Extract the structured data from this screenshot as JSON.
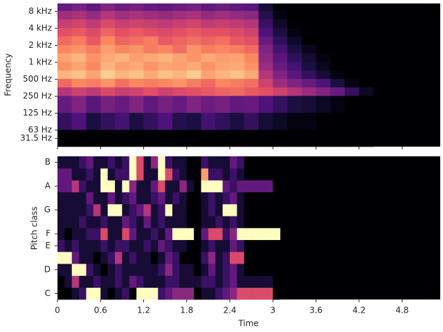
{
  "chart_data": [
    {
      "type": "heatmap",
      "ylabel": "Frequency",
      "colormap": "magma",
      "clim": [
        -80,
        0
      ],
      "yscale": "symlog",
      "linthresh": 64,
      "linscale": 1,
      "xlim": [
        0,
        5.33
      ],
      "ylim": [
        0,
        11025
      ],
      "xticks": [
        0,
        0.6,
        1.2,
        1.8,
        2.4,
        3,
        3.6,
        4.2,
        4.8
      ],
      "yticks": [
        {
          "value": 31.25,
          "label": "31.5 Hz"
        },
        {
          "value": 62.5,
          "label": "63 Hz"
        },
        {
          "value": 125,
          "label": "125 Hz"
        },
        {
          "value": 250,
          "label": "250 Hz"
        },
        {
          "value": 500,
          "label": "500 Hz"
        },
        {
          "value": 1000,
          "label": "1 kHz"
        },
        {
          "value": 2000,
          "label": "2 kHz"
        },
        {
          "value": 4000,
          "label": "4 kHz"
        },
        {
          "value": 8000,
          "label": "8 kHz"
        }
      ],
      "time_bins": [
        0,
        0.2,
        0.4,
        0.6,
        0.8,
        1,
        1.2,
        1.4,
        1.6,
        1.8,
        2,
        2.2,
        2.4,
        2.6,
        2.8,
        3,
        3.2,
        3.4,
        3.6,
        3.8,
        4,
        4.2,
        4.4
      ],
      "freq_bins": [
        0,
        64,
        128,
        256,
        362,
        512,
        724,
        1024,
        1448,
        2048,
        2896,
        4096,
        5793,
        8192,
        11025
      ],
      "values": [
        [
          -80,
          -80,
          -80,
          -80,
          -80,
          -80,
          -80,
          -80,
          -80,
          -80,
          -80,
          -80,
          -80,
          -80,
          -80,
          -80,
          -80,
          -80,
          -80,
          -80,
          -80,
          -80
        ],
        [
          -65,
          -60,
          -70,
          -65,
          -62,
          -70,
          -65,
          -60,
          -68,
          -70,
          -62,
          -66,
          -70,
          -65,
          -72,
          -75,
          -78,
          -78,
          -80,
          -80,
          -80,
          -80
        ],
        [
          -55,
          -50,
          -58,
          -52,
          -55,
          -50,
          -56,
          -52,
          -55,
          -50,
          -54,
          -52,
          -56,
          -55,
          -60,
          -65,
          -70,
          -72,
          -75,
          -78,
          -80,
          -80
        ],
        [
          -40,
          -35,
          -38,
          -32,
          -36,
          -34,
          -30,
          -35,
          -32,
          -30,
          -28,
          -26,
          -25,
          -28,
          -30,
          -35,
          -40,
          -45,
          -50,
          -55,
          -65,
          -75
        ],
        [
          -25,
          -20,
          -22,
          -18,
          -24,
          -20,
          -22,
          -20,
          -18,
          -22,
          -25,
          -20,
          -22,
          -24,
          -35,
          -45,
          -50,
          -55,
          -60,
          -70,
          -78,
          -80
        ],
        [
          -12,
          -10,
          -15,
          -8,
          -12,
          -10,
          -14,
          -10,
          -12,
          -8,
          -15,
          -12,
          -10,
          -14,
          -40,
          -50,
          -58,
          -65,
          -72,
          -78,
          -80,
          -80
        ],
        [
          -18,
          -15,
          -20,
          -12,
          -16,
          -14,
          -18,
          -15,
          -16,
          -14,
          -18,
          -15,
          -14,
          -18,
          -45,
          -55,
          -62,
          -70,
          -76,
          -80,
          -80,
          -80
        ],
        [
          -15,
          -12,
          -18,
          -14,
          -12,
          -16,
          -14,
          -12,
          -15,
          -18,
          -14,
          -16,
          -15,
          -20,
          -48,
          -58,
          -66,
          -72,
          -78,
          -80,
          -80,
          -80
        ],
        [
          -20,
          -18,
          -22,
          -16,
          -20,
          -18,
          -22,
          -20,
          -24,
          -18,
          -22,
          -20,
          -22,
          -25,
          -50,
          -62,
          -70,
          -76,
          -80,
          -80,
          -80,
          -80
        ],
        [
          -25,
          -22,
          -28,
          -20,
          -26,
          -24,
          -22,
          -28,
          -26,
          -24,
          -26,
          -24,
          -28,
          -30,
          -55,
          -66,
          -74,
          -80,
          -80,
          -80,
          -80,
          -80
        ],
        [
          -30,
          -28,
          -32,
          -26,
          -30,
          -28,
          -30,
          -32,
          -30,
          -28,
          -30,
          -30,
          -32,
          -35,
          -60,
          -70,
          -78,
          -80,
          -80,
          -80,
          -80,
          -80
        ],
        [
          -36,
          -34,
          -38,
          -32,
          -36,
          -35,
          -36,
          -38,
          -36,
          -34,
          -38,
          -36,
          -38,
          -40,
          -64,
          -74,
          -80,
          -80,
          -80,
          -80,
          -80,
          -80
        ],
        [
          -44,
          -42,
          -46,
          -40,
          -44,
          -42,
          -44,
          -46,
          -44,
          -42,
          -46,
          -44,
          -46,
          -48,
          -68,
          -78,
          -80,
          -80,
          -80,
          -80,
          -80,
          -80
        ],
        [
          -55,
          -52,
          -56,
          -50,
          -54,
          -52,
          -55,
          -56,
          -54,
          -52,
          -56,
          -54,
          -56,
          -58,
          -72,
          -80,
          -80,
          -80,
          -80,
          -80,
          -80,
          -80
        ]
      ]
    },
    {
      "type": "heatmap",
      "xlabel": "Time",
      "ylabel": "Pitch class",
      "colormap": "magma",
      "clim": [
        0,
        1
      ],
      "xlim": [
        0,
        5.33
      ],
      "xticks": [
        0,
        0.6,
        1.2,
        1.8,
        2.4,
        3,
        3.6,
        4.2,
        4.8
      ],
      "categories": [
        "C",
        null,
        "D",
        null,
        "E",
        "F",
        null,
        "G",
        null,
        "A",
        null,
        "B"
      ],
      "time_bins": [
        0,
        0.1,
        0.2,
        0.3,
        0.4,
        0.5,
        0.6,
        0.7,
        0.8,
        0.9,
        1,
        1.1,
        1.2,
        1.3,
        1.4,
        1.5,
        1.6,
        1.7,
        1.8,
        1.9,
        2,
        2.1,
        2.2,
        2.3,
        2.4,
        2.5,
        2.6,
        2.7,
        2.8,
        2.9,
        3,
        3.1
      ],
      "values": [
        [
          0,
          0,
          0.1,
          0.2,
          1,
          1,
          0.1,
          0,
          0.1,
          0.2,
          0,
          1,
          1,
          1,
          0.2,
          0.3,
          0.4,
          0.4,
          0.4,
          0,
          0.1,
          0.1,
          0.2,
          0.3,
          0.4,
          0.6,
          0.6,
          0.6,
          0.6,
          0.6,
          0
        ],
        [
          0,
          0.1,
          0.5,
          0.1,
          0.1,
          0.2,
          0.1,
          0.1,
          0.2,
          0.1,
          0.3,
          0.2,
          0.1,
          0.1,
          0.1,
          0.2,
          0.2,
          0.1,
          0.1,
          0.1,
          0.2,
          0.2,
          0.1,
          0.2,
          0.3,
          0.1,
          0.1,
          0.1,
          0.1,
          0.1,
          0
        ],
        [
          0.1,
          0.1,
          1,
          1,
          0.2,
          0.1,
          0,
          0.1,
          0.2,
          0.1,
          0.1,
          0.1,
          0.1,
          0.1,
          0.2,
          0.4,
          0.2,
          0.1,
          0.1,
          0,
          0.1,
          0.3,
          0.1,
          0.2,
          0.3,
          0.1,
          0,
          0,
          0,
          0,
          0
        ],
        [
          1,
          1,
          0.3,
          0.1,
          0.1,
          0,
          0.1,
          0.2,
          0.5,
          0.1,
          0.2,
          0.1,
          0.1,
          0,
          0.1,
          0.3,
          0.2,
          0,
          0,
          0,
          0.2,
          0.4,
          0.1,
          0.2,
          0.6,
          0.6,
          0,
          0,
          0,
          0,
          0
        ],
        [
          0.2,
          0.1,
          0.2,
          0.1,
          0.1,
          0.1,
          0.2,
          0.1,
          0.2,
          0.2,
          0.1,
          0.1,
          0.2,
          0.1,
          0.3,
          0.2,
          0.1,
          0.1,
          0,
          0,
          0.1,
          0.2,
          0.1,
          0.1,
          0.3,
          0.2,
          0,
          0,
          0,
          0,
          0
        ],
        [
          0.1,
          0,
          0.1,
          0.1,
          0.2,
          0.2,
          0.6,
          0.1,
          0.1,
          0.6,
          0.3,
          0.1,
          0.1,
          0.2,
          0.1,
          0.3,
          1,
          1,
          1,
          0,
          0.3,
          0.6,
          0.6,
          0.2,
          0.4,
          1,
          1,
          1,
          1,
          1,
          1
        ],
        [
          0.1,
          0.1,
          0.1,
          0.2,
          0.1,
          0.1,
          0.2,
          0.1,
          0.1,
          0.3,
          0.2,
          0.1,
          0.3,
          0.1,
          0.2,
          0.1,
          0.1,
          0.1,
          0,
          0,
          0.1,
          0.1,
          0.2,
          0.1,
          0.2,
          0.1,
          0,
          0,
          0,
          0,
          0
        ],
        [
          0.1,
          0.1,
          0.1,
          0.1,
          0.2,
          0.5,
          0.1,
          1,
          1,
          0.1,
          0.2,
          0.3,
          0.5,
          0.1,
          0.2,
          1,
          0.1,
          0.1,
          0,
          0,
          0.1,
          0.2,
          0.1,
          1,
          1,
          0.1,
          0,
          0,
          0,
          0,
          0
        ],
        [
          0.1,
          0.1,
          0.1,
          0.1,
          0.3,
          0.1,
          0.1,
          0.3,
          0.1,
          0.2,
          0.3,
          0.1,
          0.1,
          0.2,
          0.3,
          0.1,
          0.2,
          0.1,
          0,
          0,
          0.1,
          0.2,
          0.1,
          0.2,
          0.3,
          0.1,
          0,
          0,
          0,
          0,
          0
        ],
        [
          0.3,
          0.3,
          0.5,
          0.2,
          0.1,
          0.1,
          1,
          1,
          0.1,
          1,
          0.4,
          0.1,
          0.1,
          0.3,
          0.6,
          0.1,
          0.1,
          0.4,
          0.1,
          0,
          1,
          1,
          1,
          0.3,
          0.2,
          0.3,
          0.3,
          0.3,
          0.3,
          0.3,
          0
        ],
        [
          0.3,
          0.3,
          0.1,
          0.1,
          0.2,
          0.1,
          1,
          0.1,
          0.2,
          0.2,
          1,
          0.6,
          0.1,
          0.1,
          1,
          0.6,
          0.2,
          0.1,
          0,
          0,
          0.8,
          0.2,
          0.2,
          0.1,
          0.2,
          0.1,
          0,
          0,
          0,
          0,
          0
        ],
        [
          0.1,
          0.1,
          0.1,
          0.2,
          0.3,
          0.1,
          0.1,
          0.2,
          0.1,
          0.2,
          1,
          0.6,
          0.1,
          0.4,
          1,
          0.2,
          0.1,
          0.1,
          0,
          0,
          0.2,
          0.1,
          0.1,
          0.1,
          0.3,
          0.2,
          0,
          0,
          0,
          0,
          0
        ]
      ]
    }
  ]
}
